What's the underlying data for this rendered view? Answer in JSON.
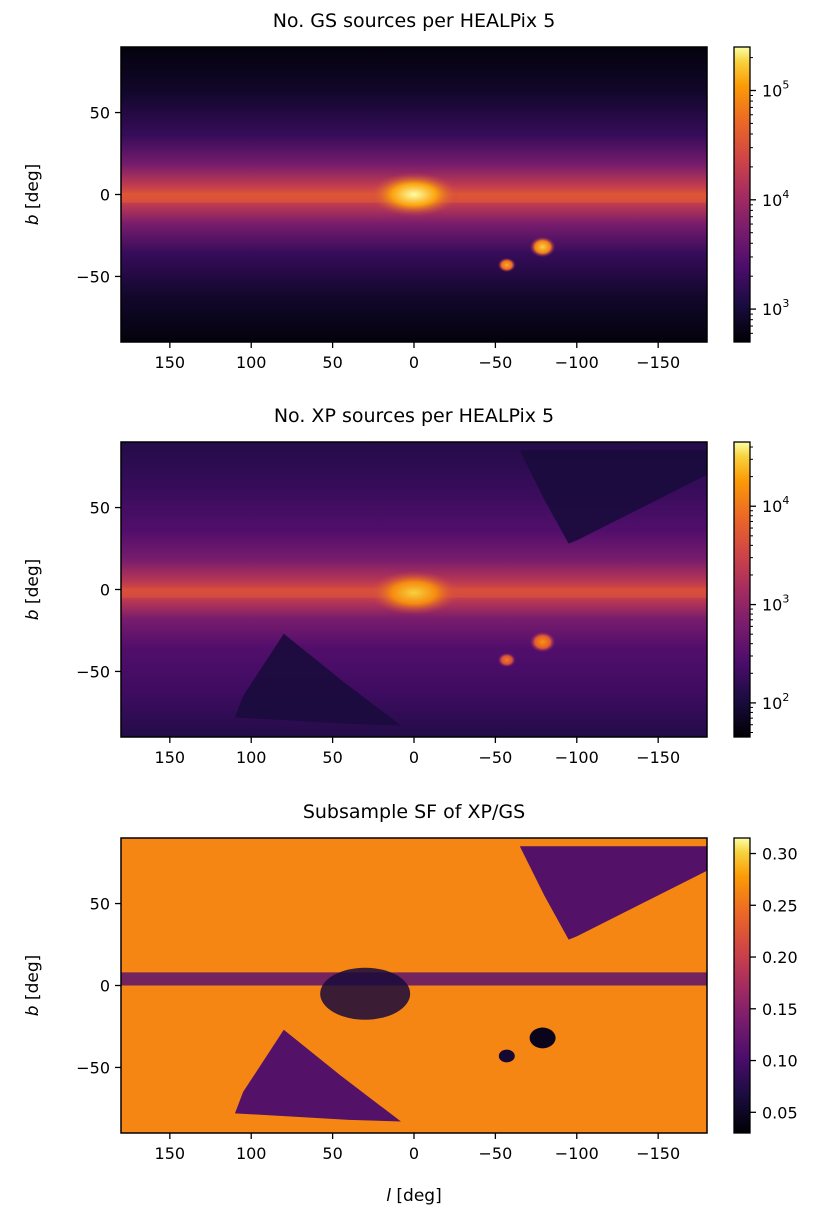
{
  "chart_data": [
    {
      "type": "heatmap",
      "title": "No. GS sources per HEALPix 5",
      "xlabel": "",
      "ylabel_italic": "b",
      "ylabel_unit": " [deg]",
      "xlim": [
        180,
        -180
      ],
      "ylim": [
        -90,
        90
      ],
      "x_ticks": [
        150,
        100,
        50,
        0,
        -50,
        -100,
        -150
      ],
      "x_tick_labels": [
        "150",
        "100",
        "50",
        "0",
        "−50",
        "−100",
        "−150"
      ],
      "y_ticks": [
        50,
        0,
        -50
      ],
      "y_tick_labels": [
        "50",
        "0",
        "−50"
      ],
      "colormap": "inferno",
      "color_scale": "log",
      "color_range": [
        500,
        250000
      ],
      "colorbar_ticks": [
        {
          "value": 1000,
          "base": "10",
          "exp": "3"
        },
        {
          "value": 10000,
          "base": "10",
          "exp": "4"
        },
        {
          "value": 100000,
          "base": "10",
          "exp": "5"
        }
      ],
      "features": [
        {
          "name": "galactic-plane",
          "l_range": [
            -180,
            180
          ],
          "b": -2,
          "level": 0.68
        },
        {
          "name": "galactic-bulge",
          "l": 0,
          "b": 0,
          "level": 1.0
        },
        {
          "name": "LMC",
          "l": -79,
          "b": -32,
          "level": 0.95
        },
        {
          "name": "SMC",
          "l": -57,
          "b": -43,
          "level": 0.9
        }
      ]
    },
    {
      "type": "heatmap",
      "title": "No. XP sources per HEALPix 5",
      "xlabel": "",
      "ylabel_italic": "b",
      "ylabel_unit": " [deg]",
      "xlim": [
        180,
        -180
      ],
      "ylim": [
        -90,
        90
      ],
      "x_ticks": [
        150,
        100,
        50,
        0,
        -50,
        -100,
        -150
      ],
      "x_tick_labels": [
        "150",
        "100",
        "50",
        "0",
        "−50",
        "−100",
        "−150"
      ],
      "y_ticks": [
        50,
        0,
        -50
      ],
      "y_tick_labels": [
        "50",
        "0",
        "−50"
      ],
      "colormap": "inferno",
      "color_scale": "log",
      "color_range": [
        45,
        45000
      ],
      "colorbar_ticks": [
        {
          "value": 100,
          "base": "10",
          "exp": "2"
        },
        {
          "value": 1000,
          "base": "10",
          "exp": "3"
        },
        {
          "value": 10000,
          "base": "10",
          "exp": "4"
        }
      ],
      "features": [
        {
          "name": "galactic-plane",
          "l_range": [
            -180,
            180
          ],
          "b": -2,
          "level": 0.66
        },
        {
          "name": "galactic-bulge",
          "l": 0,
          "b": -2,
          "level": 0.95
        },
        {
          "name": "LMC",
          "l": -79,
          "b": -32,
          "level": 0.85
        },
        {
          "name": "SMC",
          "l": -57,
          "b": -43,
          "level": 0.8
        },
        {
          "name": "low-coverage-north",
          "l_range": [
            -180,
            -85
          ],
          "b_range": [
            25,
            85
          ],
          "level": 0.12
        },
        {
          "name": "low-coverage-south",
          "l_range": [
            5,
            100
          ],
          "b_range": [
            -85,
            -25
          ],
          "level": 0.12
        }
      ]
    },
    {
      "type": "heatmap",
      "title": "Subsample SF of XP/GS",
      "xlabel_italic": "l",
      "xlabel_unit": " [deg]",
      "ylabel_italic": "b",
      "ylabel_unit": " [deg]",
      "xlim": [
        180,
        -180
      ],
      "ylim": [
        -90,
        90
      ],
      "x_ticks": [
        150,
        100,
        50,
        0,
        -50,
        -100,
        -150
      ],
      "x_tick_labels": [
        "150",
        "100",
        "50",
        "0",
        "−50",
        "−100",
        "−150"
      ],
      "y_ticks": [
        50,
        0,
        -50
      ],
      "y_tick_labels": [
        "50",
        "0",
        "−50"
      ],
      "colormap": "inferno",
      "color_scale": "linear",
      "color_range": [
        0.03,
        0.315
      ],
      "colorbar_ticks": [
        {
          "value": 0.05,
          "label": "0.05"
        },
        {
          "value": 0.1,
          "label": "0.10"
        },
        {
          "value": 0.15,
          "label": "0.15"
        },
        {
          "value": 0.2,
          "label": "0.20"
        },
        {
          "value": 0.25,
          "label": "0.25"
        },
        {
          "value": 0.3,
          "label": "0.30"
        }
      ],
      "features": [
        {
          "name": "background-high-sf",
          "level": 0.82
        },
        {
          "name": "galactic-plane-low-sf",
          "b": 2,
          "level": 0.3
        },
        {
          "name": "bulge-low-sf",
          "l": 30,
          "b": -5,
          "level": 0.12
        },
        {
          "name": "LMC",
          "l": -79,
          "b": -32,
          "level": 0.05
        },
        {
          "name": "SMC",
          "l": -57,
          "b": -43,
          "level": 0.1
        },
        {
          "name": "low-sf-north",
          "l_range": [
            -180,
            -85
          ],
          "b_range": [
            25,
            85
          ],
          "level": 0.25
        },
        {
          "name": "low-sf-south",
          "l_range": [
            5,
            100
          ],
          "b_range": [
            -85,
            -25
          ],
          "level": 0.25
        }
      ]
    }
  ]
}
